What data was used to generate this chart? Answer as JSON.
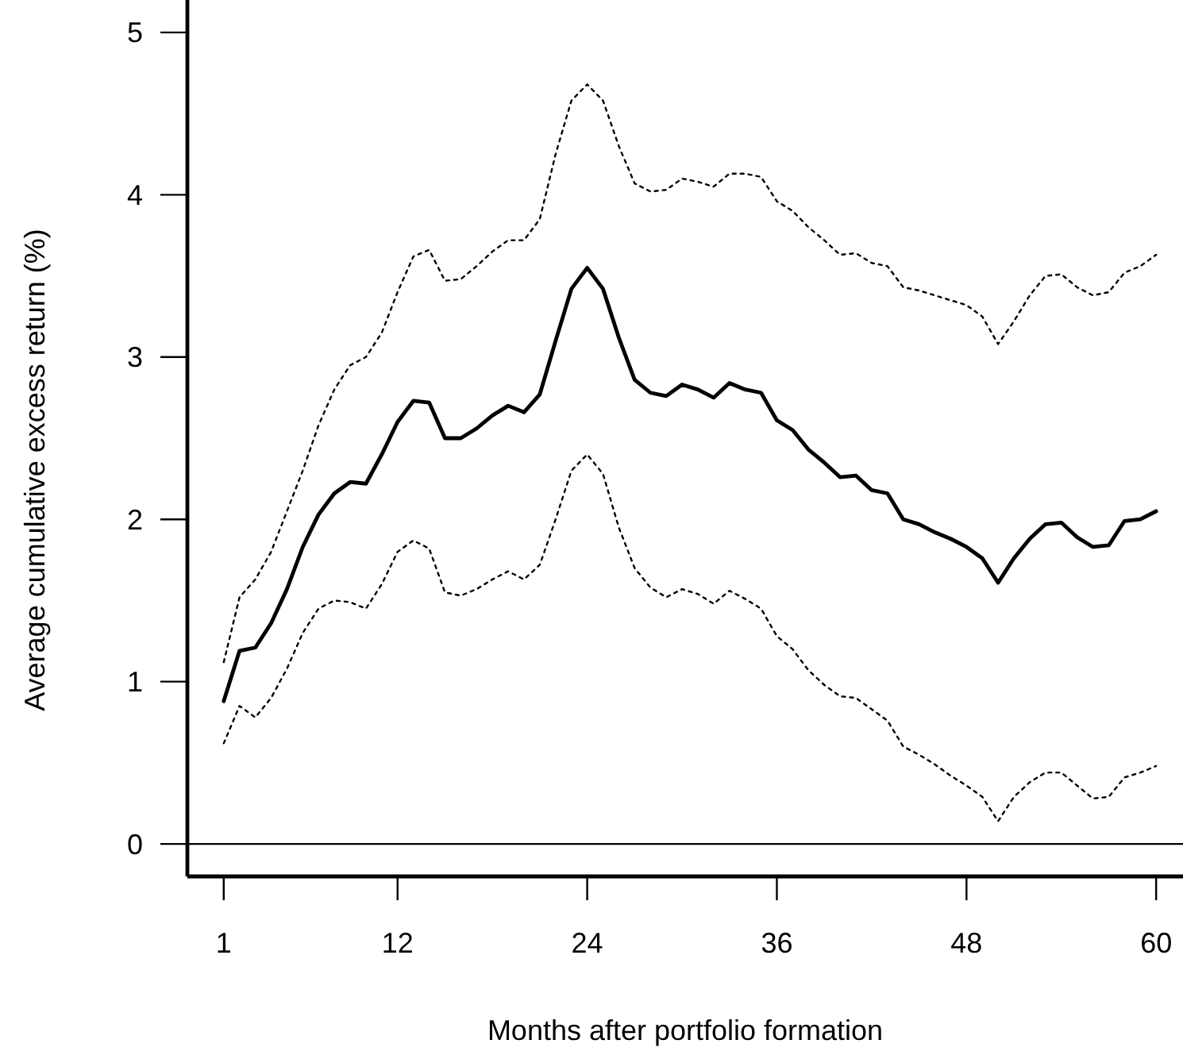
{
  "chart_data": {
    "type": "line",
    "xlabel": "Months after portfolio formation",
    "ylabel": "Average cumulative excess return (%)",
    "x": [
      1,
      2,
      3,
      4,
      5,
      6,
      7,
      8,
      9,
      10,
      11,
      12,
      13,
      14,
      15,
      16,
      17,
      18,
      19,
      20,
      21,
      22,
      23,
      24,
      25,
      26,
      27,
      28,
      29,
      30,
      31,
      32,
      33,
      34,
      35,
      36,
      37,
      38,
      39,
      40,
      41,
      42,
      43,
      44,
      45,
      46,
      47,
      48,
      49,
      50,
      51,
      52,
      53,
      54,
      55,
      56,
      57,
      58,
      59,
      60
    ],
    "series": [
      {
        "color": "#000000",
        "line_style": "solid",
        "values": [
          0.88,
          1.19,
          1.21,
          1.36,
          1.57,
          1.83,
          2.03,
          2.16,
          2.23,
          2.22,
          2.4,
          2.6,
          2.73,
          2.72,
          2.5,
          2.5,
          2.56,
          2.64,
          2.7,
          2.66,
          2.77,
          3.1,
          3.42,
          3.55,
          3.42,
          3.12,
          2.86,
          2.78,
          2.76,
          2.83,
          2.8,
          2.75,
          2.84,
          2.8,
          2.78,
          2.61,
          2.55,
          2.43,
          2.35,
          2.26,
          2.27,
          2.18,
          2.16,
          2.0,
          1.97,
          1.92,
          1.88,
          1.83,
          1.76,
          1.61,
          1.76,
          1.88,
          1.97,
          1.98,
          1.89,
          1.83,
          1.84,
          1.99,
          2.0,
          2.05
        ]
      },
      {
        "color": "#000000",
        "line_style": "dotted",
        "values": [
          1.12,
          1.52,
          1.63,
          1.8,
          2.05,
          2.3,
          2.58,
          2.8,
          2.95,
          3.0,
          3.15,
          3.4,
          3.62,
          3.66,
          3.47,
          3.48,
          3.56,
          3.65,
          3.72,
          3.72,
          3.85,
          4.25,
          4.58,
          4.68,
          4.58,
          4.3,
          4.07,
          4.02,
          4.03,
          4.1,
          4.08,
          4.05,
          4.13,
          4.13,
          4.11,
          3.96,
          3.9,
          3.8,
          3.72,
          3.63,
          3.64,
          3.58,
          3.56,
          3.43,
          3.41,
          3.38,
          3.35,
          3.32,
          3.25,
          3.08,
          3.22,
          3.38,
          3.5,
          3.51,
          3.43,
          3.38,
          3.4,
          3.52,
          3.56,
          3.63
        ]
      },
      {
        "color": "#000000",
        "line_style": "dotted",
        "values": [
          0.62,
          0.85,
          0.78,
          0.9,
          1.08,
          1.3,
          1.45,
          1.5,
          1.49,
          1.45,
          1.6,
          1.8,
          1.87,
          1.82,
          1.55,
          1.53,
          1.57,
          1.63,
          1.68,
          1.63,
          1.72,
          2.0,
          2.3,
          2.4,
          2.28,
          1.95,
          1.7,
          1.58,
          1.52,
          1.57,
          1.54,
          1.48,
          1.56,
          1.51,
          1.45,
          1.28,
          1.2,
          1.07,
          0.98,
          0.91,
          0.9,
          0.83,
          0.76,
          0.6,
          0.55,
          0.49,
          0.42,
          0.36,
          0.29,
          0.14,
          0.29,
          0.38,
          0.44,
          0.44,
          0.36,
          0.28,
          0.29,
          0.41,
          0.44,
          0.48
        ]
      }
    ],
    "xlim": [
      -1.3,
      61.7
    ],
    "ylim": [
      -0.2,
      5.2
    ],
    "xticks": [
      1,
      12,
      24,
      36,
      48,
      60
    ],
    "yticks": [
      0,
      1,
      2,
      3,
      4,
      5
    ],
    "ref_lines": [
      {
        "axis": "y",
        "value": 0,
        "color": "#000000",
        "line_style": "solid"
      }
    ],
    "grid": false
  }
}
